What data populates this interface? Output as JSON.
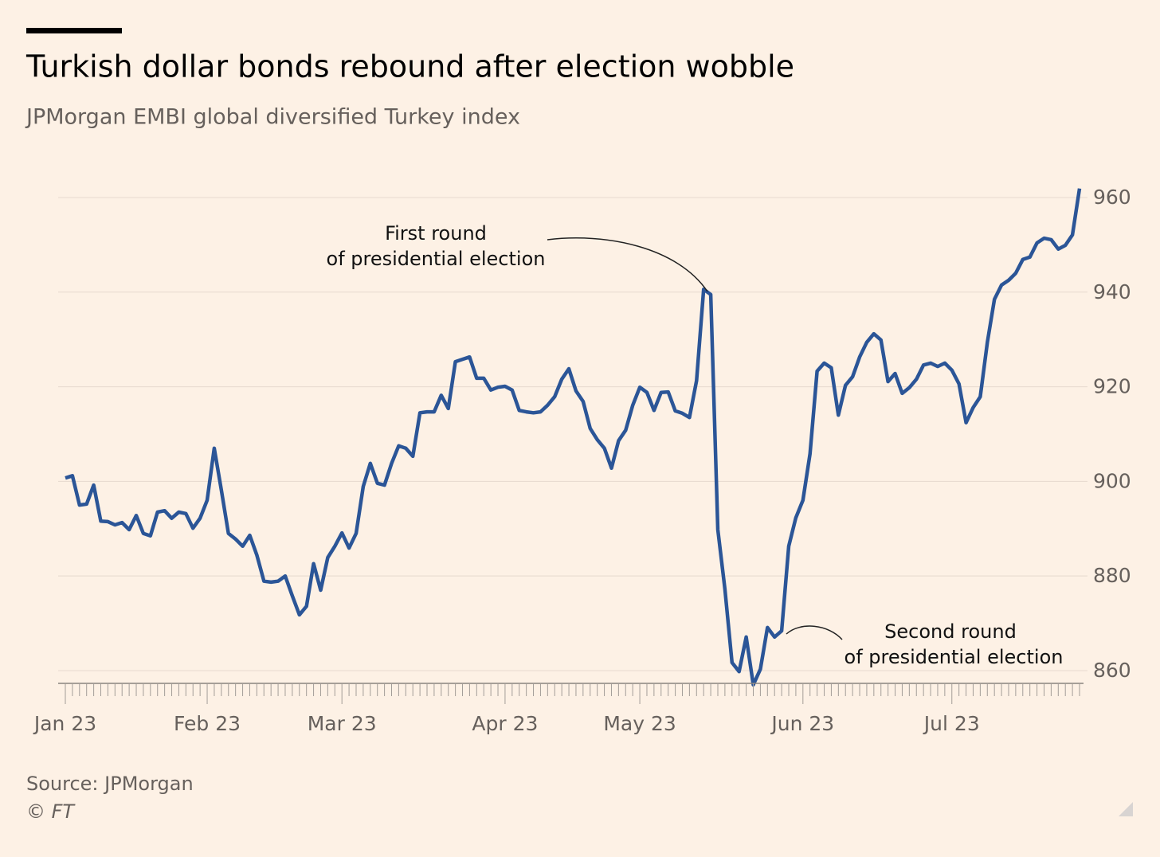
{
  "chart_data": {
    "type": "line",
    "title": "Turkish dollar bonds rebound after election wobble",
    "subtitle": "JPMorgan EMBI global diversified Turkey index",
    "source": "Source: JPMorgan",
    "credit": "© FT",
    "categories": [
      "Jan 23",
      null,
      null,
      null,
      null,
      null,
      null,
      null,
      null,
      null,
      null,
      null,
      null,
      null,
      null,
      null,
      null,
      null,
      null,
      null,
      "Feb 23",
      null,
      null,
      null,
      null,
      null,
      null,
      null,
      null,
      null,
      null,
      null,
      null,
      null,
      null,
      null,
      null,
      null,
      null,
      "Mar 23",
      null,
      null,
      null,
      null,
      null,
      null,
      null,
      null,
      null,
      null,
      null,
      null,
      null,
      null,
      null,
      null,
      null,
      null,
      null,
      null,
      null,
      null,
      "Apr 23",
      null,
      null,
      null,
      null,
      null,
      null,
      null,
      null,
      null,
      null,
      null,
      null,
      null,
      null,
      null,
      null,
      null,
      null,
      "May 23",
      null,
      null,
      null,
      null,
      null,
      null,
      null,
      null,
      null,
      null,
      null,
      null,
      null,
      null,
      null,
      null,
      null,
      null,
      null,
      null,
      null,
      null,
      "Jun 23",
      null,
      null,
      null,
      null,
      null,
      null,
      null,
      null,
      null,
      null,
      null,
      null,
      null,
      null,
      null,
      null,
      null,
      null,
      null,
      null,
      "Jul 23",
      null,
      null,
      null,
      null,
      null,
      null,
      null,
      null,
      null,
      null,
      null,
      null,
      null,
      null,
      null,
      null,
      null,
      null
    ],
    "series": [
      {
        "name": "JPMorgan EMBI global diversified Turkey index",
        "color": "#2b5597",
        "values": [
          900.7,
          901.2,
          895.0,
          895.2,
          899.2,
          891.6,
          891.5,
          890.8,
          891.3,
          889.8,
          892.8,
          889.0,
          888.5,
          893.5,
          893.8,
          892.2,
          893.5,
          893.2,
          890.1,
          892.2,
          896.0,
          907.0,
          898.2,
          889.0,
          887.8,
          886.3,
          888.6,
          884.4,
          878.9,
          878.7,
          878.9,
          880.0,
          875.8,
          871.8,
          873.6,
          882.6,
          877.0,
          883.9,
          886.3,
          889.1,
          885.9,
          889.0,
          898.9,
          903.8,
          899.6,
          899.2,
          903.8,
          907.5,
          907.0,
          905.3,
          914.5,
          914.7,
          914.7,
          918.2,
          915.4,
          925.3,
          925.8,
          926.3,
          921.8,
          921.8,
          919.3,
          919.9,
          920.1,
          919.3,
          915.0,
          914.7,
          914.5,
          914.7,
          916.1,
          917.9,
          921.6,
          923.8,
          919.1,
          916.9,
          911.2,
          908.8,
          907.0,
          902.8,
          908.6,
          910.8,
          916.1,
          919.9,
          918.8,
          915.0,
          918.8,
          918.9,
          914.9,
          914.4,
          913.5,
          921.3,
          940.6,
          939.5,
          889.8,
          877.2,
          861.7,
          859.8,
          867.1,
          857.0,
          860.3,
          869.1,
          867.1,
          868.4,
          886.3,
          892.3,
          896.0,
          905.8,
          923.3,
          925.0,
          924.0,
          914.0,
          920.3,
          922.1,
          926.3,
          929.4,
          931.2,
          929.9,
          921.1,
          922.8,
          918.6,
          919.8,
          921.6,
          924.6,
          925.0,
          924.3,
          925.0,
          923.5,
          920.6,
          912.4,
          915.6,
          917.9,
          929.4,
          938.5,
          941.5,
          942.5,
          944.0,
          946.9,
          947.4,
          950.4,
          951.4,
          951.1,
          949.1,
          949.9,
          952.1,
          961.9
        ]
      }
    ],
    "ylim": [
      857,
      965
    ],
    "yticks": [
      860,
      880,
      900,
      920,
      940,
      960
    ],
    "grid": true,
    "annotations": [
      {
        "lines": [
          "First round",
          "of presidential election"
        ]
      },
      {
        "lines": [
          "Second round",
          "of presidential election"
        ]
      }
    ]
  }
}
